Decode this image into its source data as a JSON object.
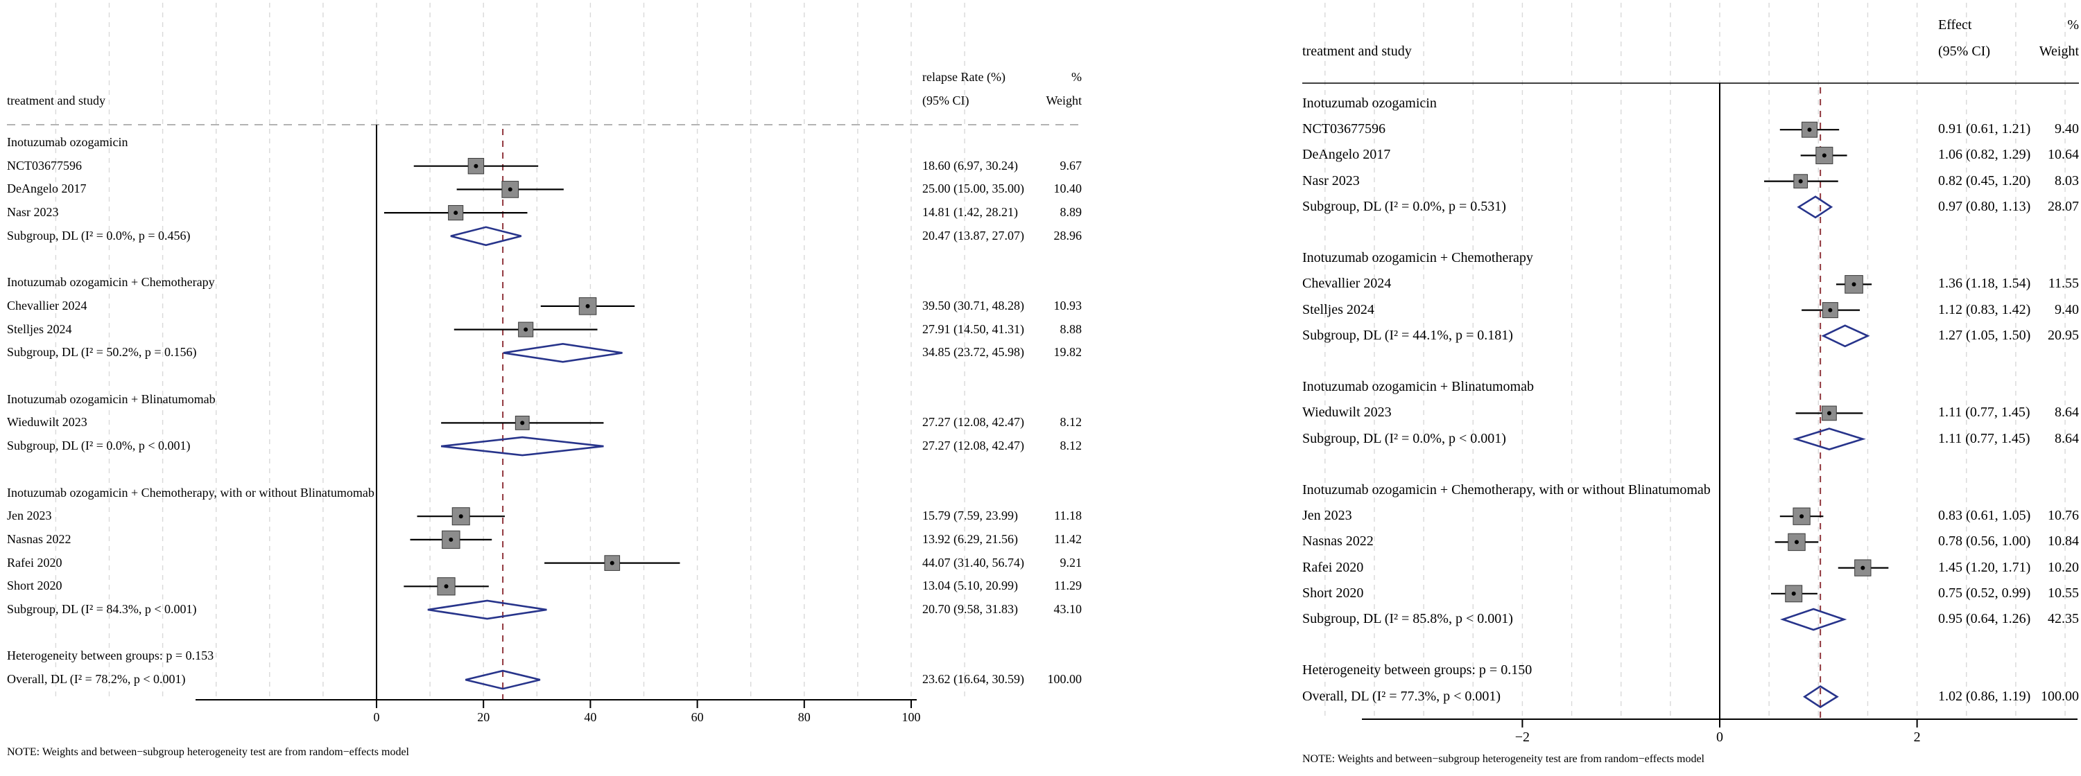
{
  "colors": {
    "diamond": "#27348b",
    "marker_fill": "#8c8c8c",
    "marker_dot": "#000000",
    "ci_line": "#000000",
    "ref_line": "#90353b",
    "grid": "#d9d9d9",
    "axis": "#000000"
  },
  "chart_data": [
    {
      "type": "forest",
      "panel": "left",
      "columns": {
        "study": "treatment and study",
        "effect_line1": "relapse Rate (%)",
        "effect_line2": "(95% CI)",
        "weight_line1": "%",
        "weight_line2": "Weight"
      },
      "note": "NOTE: Weights and between−subgroup heterogeneity test are from random−effects model",
      "axis": {
        "xlim": [
          0,
          100
        ],
        "ticks": [
          {
            "v": 0,
            "label": "0"
          },
          {
            "v": 20,
            "label": "20"
          },
          {
            "v": 40,
            "label": "40"
          },
          {
            "v": 60,
            "label": "60"
          },
          {
            "v": 80,
            "label": "80"
          },
          {
            "v": 100,
            "label": "100"
          }
        ],
        "zero_line": 0,
        "overall_ref": 23.62,
        "grid_step": 10,
        "grid_min": -60,
        "grid_max": 110
      },
      "rows": [
        {
          "kind": "group",
          "label": "Inotuzumab ozogamicin"
        },
        {
          "kind": "study",
          "label": "NCT03677596",
          "est": 18.6,
          "lo": 6.97,
          "hi": 30.24,
          "ci_text": "18.60 (6.97, 30.24)",
          "weight": 9.67,
          "weight_text": "9.67"
        },
        {
          "kind": "study",
          "label": "DeAngelo 2017",
          "est": 25.0,
          "lo": 15.0,
          "hi": 35.0,
          "ci_text": "25.00 (15.00, 35.00)",
          "weight": 10.4,
          "weight_text": "10.40"
        },
        {
          "kind": "study",
          "label": "Nasr 2023",
          "est": 14.81,
          "lo": 1.42,
          "hi": 28.21,
          "ci_text": "14.81 (1.42, 28.21)",
          "weight": 8.89,
          "weight_text": "8.89"
        },
        {
          "kind": "subgroup",
          "label": "Subgroup, DL (I² = 0.0%, p = 0.456)",
          "est": 20.47,
          "lo": 13.87,
          "hi": 27.07,
          "ci_text": "20.47 (13.87, 27.07)",
          "weight_text": "28.96"
        },
        {
          "kind": "spacer"
        },
        {
          "kind": "group",
          "label": "Inotuzumab ozogamicin + Chemotherapy"
        },
        {
          "kind": "study",
          "label": "Chevallier 2024",
          "est": 39.5,
          "lo": 30.71,
          "hi": 48.28,
          "ci_text": "39.50 (30.71, 48.28)",
          "weight": 10.93,
          "weight_text": "10.93"
        },
        {
          "kind": "study",
          "label": "Stelljes 2024",
          "est": 27.91,
          "lo": 14.5,
          "hi": 41.31,
          "ci_text": "27.91 (14.50, 41.31)",
          "weight": 8.88,
          "weight_text": "8.88"
        },
        {
          "kind": "subgroup",
          "label": "Subgroup, DL (I² = 50.2%, p = 0.156)",
          "est": 34.85,
          "lo": 23.72,
          "hi": 45.98,
          "ci_text": "34.85 (23.72, 45.98)",
          "weight_text": "19.82"
        },
        {
          "kind": "spacer"
        },
        {
          "kind": "group",
          "label": "Inotuzumab ozogamicin + Blinatumomab"
        },
        {
          "kind": "study",
          "label": "Wieduwilt 2023",
          "est": 27.27,
          "lo": 12.08,
          "hi": 42.47,
          "ci_text": "27.27 (12.08, 42.47)",
          "weight": 8.12,
          "weight_text": "8.12"
        },
        {
          "kind": "subgroup",
          "label": "Subgroup, DL (I² = 0.0%, p < 0.001)",
          "est": 27.27,
          "lo": 12.08,
          "hi": 42.47,
          "ci_text": "27.27 (12.08, 42.47)",
          "weight_text": "8.12"
        },
        {
          "kind": "spacer"
        },
        {
          "kind": "group",
          "label": "Inotuzumab ozogamicin + Chemotherapy, with or without Blinatumomab"
        },
        {
          "kind": "study",
          "label": "Jen 2023",
          "est": 15.79,
          "lo": 7.59,
          "hi": 23.99,
          "ci_text": "15.79 (7.59, 23.99)",
          "weight": 11.18,
          "weight_text": "11.18"
        },
        {
          "kind": "study",
          "label": "Nasnas 2022",
          "est": 13.92,
          "lo": 6.29,
          "hi": 21.56,
          "ci_text": "13.92 (6.29, 21.56)",
          "weight": 11.42,
          "weight_text": "11.42"
        },
        {
          "kind": "study",
          "label": "Rafei 2020",
          "est": 44.07,
          "lo": 31.4,
          "hi": 56.74,
          "ci_text": "44.07 (31.40, 56.74)",
          "weight": 9.21,
          "weight_text": "9.21"
        },
        {
          "kind": "study",
          "label": "Short 2020",
          "est": 13.04,
          "lo": 5.1,
          "hi": 20.99,
          "ci_text": "13.04 (5.10, 20.99)",
          "weight": 11.29,
          "weight_text": "11.29"
        },
        {
          "kind": "subgroup",
          "label": "Subgroup, DL (I² = 84.3%, p < 0.001)",
          "est": 20.7,
          "lo": 9.58,
          "hi": 31.83,
          "ci_text": "20.70 (9.58, 31.83)",
          "weight_text": "43.10"
        },
        {
          "kind": "spacer"
        },
        {
          "kind": "text",
          "label": "Heterogeneity between groups: p = 0.153"
        },
        {
          "kind": "overall",
          "label": "Overall, DL (I² = 78.2%, p < 0.001)",
          "est": 23.62,
          "lo": 16.64,
          "hi": 30.59,
          "ci_text": "23.62 (16.64, 30.59)",
          "weight_text": "100.00"
        }
      ]
    },
    {
      "type": "forest",
      "panel": "right",
      "columns": {
        "study": "treatment and study",
        "effect_line1": "Effect",
        "effect_line2": "(95% CI)",
        "weight_line1": "%",
        "weight_line2": "Weight"
      },
      "note": "NOTE: Weights and between−subgroup heterogeneity test are from random−effects model",
      "axis": {
        "xlim": [
          -2,
          2
        ],
        "ticks": [
          {
            "v": -2,
            "label": "−2"
          },
          {
            "v": 0,
            "label": "0"
          },
          {
            "v": 2,
            "label": "2"
          }
        ],
        "zero_line": 0,
        "overall_ref": 1.02,
        "grid_step": 0.5,
        "grid_min": -4,
        "grid_max": 3.5
      },
      "rows": [
        {
          "kind": "group",
          "label": "Inotuzumab ozogamicin"
        },
        {
          "kind": "study",
          "label": "NCT03677596",
          "est": 0.91,
          "lo": 0.61,
          "hi": 1.21,
          "ci_text": "0.91 (0.61, 1.21)",
          "weight": 9.4,
          "weight_text": "9.40"
        },
        {
          "kind": "study",
          "label": "DeAngelo 2017",
          "est": 1.06,
          "lo": 0.82,
          "hi": 1.29,
          "ci_text": "1.06 (0.82, 1.29)",
          "weight": 10.64,
          "weight_text": "10.64"
        },
        {
          "kind": "study",
          "label": "Nasr 2023",
          "est": 0.82,
          "lo": 0.45,
          "hi": 1.2,
          "ci_text": "0.82 (0.45, 1.20)",
          "weight": 8.03,
          "weight_text": "8.03"
        },
        {
          "kind": "subgroup",
          "label": "Subgroup, DL (I² = 0.0%, p = 0.531)",
          "est": 0.97,
          "lo": 0.8,
          "hi": 1.13,
          "ci_text": "0.97 (0.80, 1.13)",
          "weight_text": "28.07"
        },
        {
          "kind": "spacer"
        },
        {
          "kind": "group",
          "label": "Inotuzumab ozogamicin + Chemotherapy"
        },
        {
          "kind": "study",
          "label": "Chevallier 2024",
          "est": 1.36,
          "lo": 1.18,
          "hi": 1.54,
          "ci_text": "1.36 (1.18, 1.54)",
          "weight": 11.55,
          "weight_text": "11.55"
        },
        {
          "kind": "study",
          "label": "Stelljes 2024",
          "est": 1.12,
          "lo": 0.83,
          "hi": 1.42,
          "ci_text": "1.12 (0.83, 1.42)",
          "weight": 9.4,
          "weight_text": "9.40"
        },
        {
          "kind": "subgroup",
          "label": "Subgroup, DL (I² = 44.1%, p = 0.181)",
          "est": 1.27,
          "lo": 1.05,
          "hi": 1.5,
          "ci_text": "1.27 (1.05, 1.50)",
          "weight_text": "20.95"
        },
        {
          "kind": "spacer"
        },
        {
          "kind": "group",
          "label": "Inotuzumab ozogamicin + Blinatumomab"
        },
        {
          "kind": "study",
          "label": "Wieduwilt 2023",
          "est": 1.11,
          "lo": 0.77,
          "hi": 1.45,
          "ci_text": "1.11 (0.77, 1.45)",
          "weight": 8.64,
          "weight_text": "8.64"
        },
        {
          "kind": "subgroup",
          "label": "Subgroup, DL (I² = 0.0%, p < 0.001)",
          "est": 1.11,
          "lo": 0.77,
          "hi": 1.45,
          "ci_text": "1.11 (0.77, 1.45)",
          "weight_text": "8.64"
        },
        {
          "kind": "spacer"
        },
        {
          "kind": "group",
          "label": "Inotuzumab ozogamicin + Chemotherapy, with or without Blinatumomab"
        },
        {
          "kind": "study",
          "label": "Jen 2023",
          "est": 0.83,
          "lo": 0.61,
          "hi": 1.05,
          "ci_text": "0.83 (0.61, 1.05)",
          "weight": 10.76,
          "weight_text": "10.76"
        },
        {
          "kind": "study",
          "label": "Nasnas 2022",
          "est": 0.78,
          "lo": 0.56,
          "hi": 1.0,
          "ci_text": "0.78 (0.56, 1.00)",
          "weight": 10.84,
          "weight_text": "10.84"
        },
        {
          "kind": "study",
          "label": "Rafei 2020",
          "est": 1.45,
          "lo": 1.2,
          "hi": 1.71,
          "ci_text": "1.45 (1.20, 1.71)",
          "weight": 10.2,
          "weight_text": "10.20"
        },
        {
          "kind": "study",
          "label": "Short 2020",
          "est": 0.75,
          "lo": 0.52,
          "hi": 0.99,
          "ci_text": "0.75 (0.52, 0.99)",
          "weight": 10.55,
          "weight_text": "10.55"
        },
        {
          "kind": "subgroup",
          "label": "Subgroup, DL (I² = 85.8%, p < 0.001)",
          "est": 0.95,
          "lo": 0.64,
          "hi": 1.26,
          "ci_text": "0.95 (0.64, 1.26)",
          "weight_text": "42.35"
        },
        {
          "kind": "spacer"
        },
        {
          "kind": "text",
          "label": "Heterogeneity between groups: p = 0.150"
        },
        {
          "kind": "overall",
          "label": "Overall, DL (I² = 77.3%, p < 0.001)",
          "est": 1.02,
          "lo": 0.86,
          "hi": 1.19,
          "ci_text": "1.02 (0.86, 1.19)",
          "weight_text": "100.00"
        }
      ]
    }
  ]
}
